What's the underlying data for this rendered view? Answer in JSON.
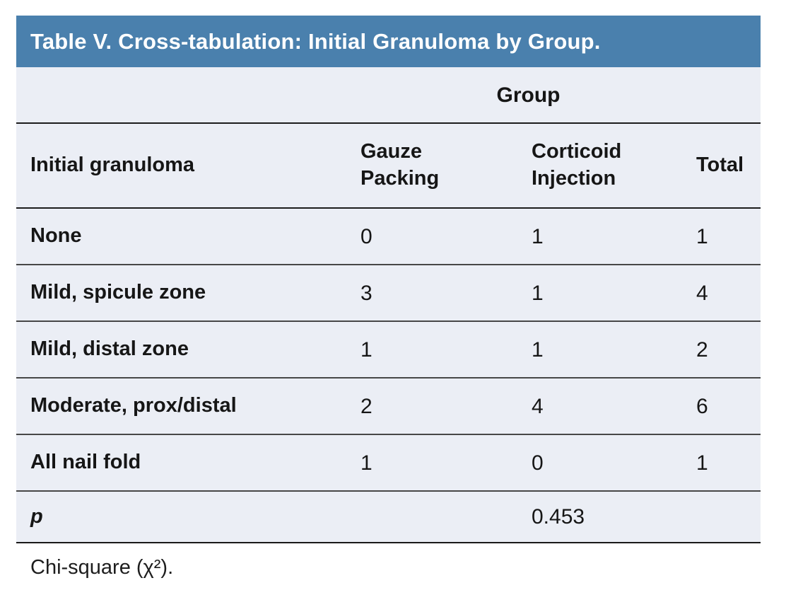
{
  "table": {
    "title": "Table V. Cross-tabulation: Initial Granuloma by Group.",
    "group_header": "Group",
    "columns": {
      "row_label": "Initial granuloma",
      "gauze": "Gauze Packing",
      "corticoid": "Corticoid Injection",
      "total": "Total"
    },
    "rows": [
      {
        "label": "None",
        "gauze": "0",
        "corticoid": "1",
        "total": "1"
      },
      {
        "label": "Mild, spicule zone",
        "gauze": "3",
        "corticoid": "1",
        "total": "4"
      },
      {
        "label": "Mild, distal zone",
        "gauze": "1",
        "corticoid": "1",
        "total": "2"
      },
      {
        "label": "Moderate, prox/distal",
        "gauze": "2",
        "corticoid": "4",
        "total": "6"
      },
      {
        "label": "All nail fold",
        "gauze": "1",
        "corticoid": "0",
        "total": "1"
      }
    ],
    "p_row": {
      "label": "p",
      "value": "0.453"
    },
    "footnote": "Chi-square (χ²)."
  },
  "colors": {
    "title_bar_bg": "#4a80ad",
    "title_text": "#ffffff",
    "body_bg": "#ebeef5",
    "strong_rule": "#1a1a1a",
    "light_rule": "#474747",
    "text": "#161616"
  }
}
